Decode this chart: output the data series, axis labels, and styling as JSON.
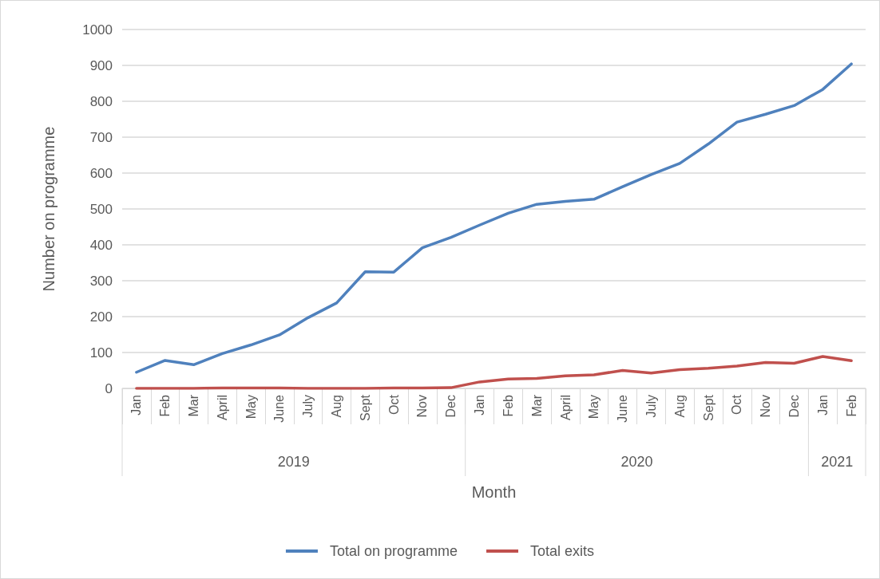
{
  "chart_data": {
    "type": "line",
    "xlabel": "Month",
    "ylabel": "Number on programme",
    "categories": [
      "Jan",
      "Feb",
      "Mar",
      "April",
      "May",
      "June",
      "July",
      "Aug",
      "Sept",
      "Oct",
      "Nov",
      "Dec",
      "Jan",
      "Feb",
      "Mar",
      "April",
      "May",
      "June",
      "July",
      "Aug",
      "Sept",
      "Oct",
      "Nov",
      "Dec",
      "Jan",
      "Feb"
    ],
    "series": [
      {
        "name": "Total on programme",
        "color": "#4f81bd",
        "values": [
          45,
          78,
          66,
          97,
          121,
          149,
          197,
          238,
          325,
          324,
          392,
          421,
          455,
          488,
          513,
          521,
          527,
          562,
          596,
          627,
          681,
          742,
          764,
          788,
          833,
          904
        ]
      },
      {
        "name": "Total exits",
        "color": "#c0504d",
        "values": [
          0,
          0,
          0,
          1,
          1,
          1,
          0,
          0,
          0,
          1,
          1,
          2,
          18,
          26,
          28,
          35,
          38,
          50,
          43,
          52,
          56,
          62,
          72,
          70,
          89,
          77
        ]
      }
    ],
    "annotations": [
      "2019",
      "2020",
      "2021"
    ],
    "ylim": [
      0,
      1000
    ],
    "yticks": [
      0,
      100,
      200,
      300,
      400,
      500,
      600,
      700,
      800,
      900,
      1000
    ],
    "grid": "y",
    "legend": "bottom",
    "marker": "none",
    "line_style": "solid"
  }
}
